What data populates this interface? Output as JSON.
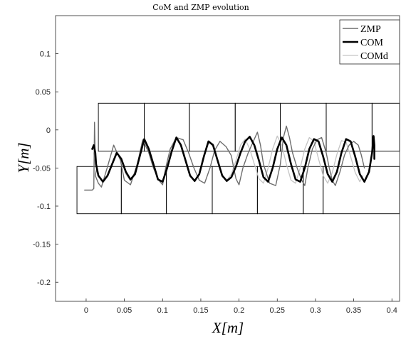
{
  "chart_data": {
    "type": "line",
    "title": "CoM and ZMP evolution",
    "xlabel": "X[m]",
    "ylabel": "Y[m]",
    "xlim": [
      -0.04,
      0.41
    ],
    "ylim": [
      -0.225,
      0.15
    ],
    "xticks": [
      0,
      0.05,
      0.1,
      0.15,
      0.2,
      0.25,
      0.3,
      0.35,
      0.4
    ],
    "xtick_labels": [
      "0",
      "0.05",
      "0.1",
      "0.15",
      "0.2",
      "0.25",
      "0.3",
      "0.35",
      "0.4"
    ],
    "yticks": [
      -0.2,
      -0.15,
      -0.1,
      -0.05,
      0,
      0.05,
      0.1
    ],
    "ytick_labels": [
      "-0.2",
      "-0.15",
      "-0.1",
      "-0.05",
      "0",
      "0.05",
      "0.1"
    ],
    "grid": false,
    "legend_position": "top-right",
    "footsteps": {
      "upper": {
        "y_top": 0.035,
        "y_bottom": -0.028,
        "x_edges": [
          0.016,
          0.076,
          0.135,
          0.195,
          0.254,
          0.314,
          0.374,
          0.41
        ]
      },
      "lower": {
        "y_top": -0.048,
        "y_bottom": -0.11,
        "x_edges": [
          -0.012,
          0.046,
          0.105,
          0.165,
          0.224,
          0.284,
          0.31,
          0.41
        ]
      },
      "colors": {
        "rect": "#000000"
      }
    },
    "series": [
      {
        "name": "ZMP",
        "color": "#6e6e6e",
        "x": [
          -0.002,
          0.008,
          0.01,
          0.011,
          0.012,
          0.014,
          0.012,
          0.016,
          0.02,
          0.028,
          0.036,
          0.045,
          0.05,
          0.058,
          0.067,
          0.074,
          0.082,
          0.088,
          0.095,
          0.1,
          0.104,
          0.11,
          0.118,
          0.127,
          0.134,
          0.141,
          0.148,
          0.155,
          0.162,
          0.168,
          0.175,
          0.183,
          0.19,
          0.193,
          0.196,
          0.2,
          0.205,
          0.212,
          0.22,
          0.224,
          0.228,
          0.232,
          0.24,
          0.248,
          0.254,
          0.258,
          0.262,
          0.266,
          0.27,
          0.276,
          0.282,
          0.286,
          0.29,
          0.296,
          0.302,
          0.308,
          0.314,
          0.318,
          0.322,
          0.326,
          0.332,
          0.338,
          0.344,
          0.35,
          0.356,
          0.36,
          0.364
        ],
        "y": [
          -0.079,
          -0.079,
          -0.077,
          0.01,
          -0.04,
          -0.05,
          -0.06,
          -0.07,
          -0.075,
          -0.048,
          -0.02,
          -0.04,
          -0.066,
          -0.072,
          -0.045,
          -0.013,
          -0.03,
          -0.05,
          -0.066,
          -0.072,
          -0.05,
          -0.025,
          -0.01,
          -0.013,
          -0.03,
          -0.05,
          -0.066,
          -0.07,
          -0.05,
          -0.027,
          -0.015,
          -0.022,
          -0.034,
          -0.05,
          -0.064,
          -0.072,
          -0.05,
          -0.03,
          -0.012,
          -0.003,
          -0.02,
          -0.045,
          -0.07,
          -0.073,
          -0.045,
          -0.01,
          0.005,
          -0.01,
          -0.03,
          -0.05,
          -0.066,
          -0.073,
          -0.05,
          -0.025,
          -0.013,
          -0.01,
          -0.03,
          -0.05,
          -0.066,
          -0.073,
          -0.055,
          -0.033,
          -0.02,
          -0.015,
          -0.02,
          -0.033,
          -0.05
        ]
      },
      {
        "name": "COM",
        "color": "#000000",
        "x": [
          0.008,
          0.01,
          0.012,
          0.013,
          0.016,
          0.022,
          0.028,
          0.034,
          0.04,
          0.046,
          0.052,
          0.058,
          0.064,
          0.07,
          0.076,
          0.082,
          0.088,
          0.094,
          0.1,
          0.106,
          0.112,
          0.118,
          0.124,
          0.13,
          0.136,
          0.142,
          0.148,
          0.154,
          0.16,
          0.166,
          0.172,
          0.178,
          0.184,
          0.19,
          0.196,
          0.202,
          0.208,
          0.214,
          0.22,
          0.226,
          0.232,
          0.238,
          0.244,
          0.25,
          0.256,
          0.262,
          0.268,
          0.274,
          0.28,
          0.286,
          0.292,
          0.298,
          0.304,
          0.31,
          0.316,
          0.322,
          0.328,
          0.334,
          0.34,
          0.346,
          0.352,
          0.358,
          0.364,
          0.37,
          0.374,
          0.376,
          0.377,
          0.377
        ],
        "y": [
          -0.025,
          -0.02,
          -0.03,
          -0.045,
          -0.06,
          -0.068,
          -0.06,
          -0.045,
          -0.03,
          -0.038,
          -0.055,
          -0.065,
          -0.058,
          -0.035,
          -0.012,
          -0.025,
          -0.045,
          -0.065,
          -0.068,
          -0.05,
          -0.028,
          -0.01,
          -0.02,
          -0.04,
          -0.06,
          -0.067,
          -0.058,
          -0.035,
          -0.015,
          -0.02,
          -0.04,
          -0.06,
          -0.067,
          -0.062,
          -0.048,
          -0.03,
          -0.015,
          -0.009,
          -0.02,
          -0.04,
          -0.062,
          -0.068,
          -0.05,
          -0.025,
          -0.01,
          -0.02,
          -0.045,
          -0.065,
          -0.068,
          -0.05,
          -0.025,
          -0.012,
          -0.015,
          -0.035,
          -0.058,
          -0.068,
          -0.055,
          -0.03,
          -0.012,
          -0.015,
          -0.035,
          -0.058,
          -0.068,
          -0.055,
          -0.03,
          -0.008,
          -0.02,
          -0.038
        ]
      },
      {
        "name": "COMd",
        "color": "#c4c4c4",
        "x": [
          0.01,
          0.012,
          0.016,
          0.022,
          0.028,
          0.034,
          0.04,
          0.046,
          0.052,
          0.058,
          0.064,
          0.07,
          0.076,
          0.082,
          0.088,
          0.094,
          0.1,
          0.106,
          0.112,
          0.118,
          0.124,
          0.13,
          0.136,
          0.142,
          0.148,
          0.154,
          0.16,
          0.166,
          0.172,
          0.178,
          0.184,
          0.19,
          0.196,
          0.202,
          0.208,
          0.214,
          0.22,
          0.226,
          0.232,
          0.238,
          0.244,
          0.25,
          0.256,
          0.262,
          0.268,
          0.274,
          0.28,
          0.286,
          0.292,
          0.298,
          0.304,
          0.31,
          0.316,
          0.322,
          0.328,
          0.334,
          0.34,
          0.346,
          0.352,
          0.358,
          0.362
        ],
        "y": [
          -0.03,
          -0.045,
          -0.06,
          -0.068,
          -0.06,
          -0.045,
          -0.028,
          -0.04,
          -0.058,
          -0.067,
          -0.055,
          -0.033,
          -0.012,
          -0.025,
          -0.046,
          -0.065,
          -0.068,
          -0.05,
          -0.028,
          -0.01,
          -0.018,
          -0.04,
          -0.06,
          -0.068,
          -0.058,
          -0.036,
          -0.016,
          -0.018,
          -0.04,
          -0.06,
          -0.066,
          -0.058,
          -0.04,
          -0.02,
          -0.012,
          -0.025,
          -0.045,
          -0.064,
          -0.07,
          -0.05,
          -0.025,
          -0.008,
          -0.02,
          -0.045,
          -0.066,
          -0.07,
          -0.05,
          -0.025,
          -0.01,
          -0.015,
          -0.038,
          -0.06,
          -0.07,
          -0.056,
          -0.032,
          -0.014,
          -0.016,
          -0.035,
          -0.056,
          -0.068,
          -0.06
        ]
      }
    ]
  }
}
